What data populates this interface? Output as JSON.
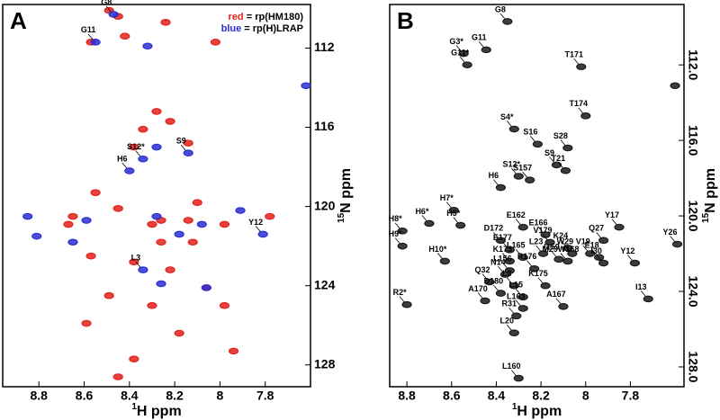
{
  "chart_data": [
    {
      "type": "scatter",
      "panel_label": "A",
      "xlabel_isotope": "1",
      "xlabel": "H ppm",
      "ylabel_isotope": "15",
      "ylabel": "N ppm",
      "xlim": [
        8.96,
        7.6
      ],
      "ylim": [
        129.1,
        109.8
      ],
      "xticks": [
        8.8,
        8.6,
        8.4,
        8.2,
        8.0,
        7.8
      ],
      "yticks": [
        112,
        116,
        120,
        124,
        128
      ],
      "legend_sep": " = ",
      "series": [
        {
          "name": "rp(HM180)",
          "legend_key": "red",
          "color": "#e3221c",
          "x": [
            8.49,
            8.45,
            8.42,
            8.24,
            8.57,
            8.02,
            8.28,
            8.22,
            8.34,
            8.14,
            8.38,
            8.55,
            8.45,
            8.65,
            8.67,
            8.3,
            8.14,
            7.98,
            7.78,
            8.26,
            8.12,
            8.57,
            8.38,
            8.22,
            8.06,
            8.49,
            8.3,
            7.98,
            8.59,
            8.18,
            8.38,
            7.94,
            8.45,
            8.26,
            8.1
          ],
          "y": [
            110.1,
            110.4,
            111.4,
            110.7,
            111.7,
            111.7,
            115.2,
            115.7,
            116.1,
            116.8,
            117.0,
            119.3,
            120.1,
            120.5,
            120.9,
            120.9,
            120.7,
            120.9,
            120.5,
            121.8,
            121.8,
            122.5,
            122.8,
            123.2,
            124.1,
            124.5,
            125.0,
            125.0,
            125.9,
            126.4,
            127.7,
            127.3,
            128.6,
            120.7,
            119.8
          ]
        },
        {
          "name": "rp(H)LRAP",
          "legend_key": "blue",
          "color": "#2b2fd0",
          "x": [
            8.47,
            8.55,
            8.32,
            8.28,
            8.14,
            8.34,
            8.4,
            8.85,
            8.81,
            8.59,
            8.28,
            8.08,
            7.91,
            7.81,
            8.34,
            8.26,
            8.06,
            8.65,
            7.62,
            8.18
          ],
          "y": [
            110.3,
            111.7,
            111.9,
            117.0,
            117.3,
            117.6,
            118.2,
            120.5,
            121.5,
            120.7,
            120.5,
            120.9,
            120.2,
            121.4,
            123.2,
            123.9,
            124.1,
            121.8,
            113.9,
            121.4
          ],
          "labels": [
            "G8",
            "G11",
            null,
            null,
            "S9",
            "S12*",
            "H6",
            null,
            null,
            null,
            null,
            null,
            null,
            "Y12",
            "L3",
            null,
            null,
            null,
            null,
            null
          ]
        }
      ]
    },
    {
      "type": "scatter",
      "panel_label": "B",
      "xlabel_isotope": "1",
      "xlabel": "H ppm",
      "ylabel_isotope": "15",
      "ylabel": "N ppm",
      "xlim": [
        8.877,
        7.56
      ],
      "ylim": [
        129.05,
        108.8
      ],
      "xticks": [
        8.8,
        8.6,
        8.4,
        8.2,
        8.0,
        7.8
      ],
      "yticks": [
        {
          "value": 112,
          "label": "112.0"
        },
        {
          "value": 116,
          "label": "116.0"
        },
        {
          "value": 120,
          "label": "120.0"
        },
        {
          "value": 124,
          "label": "124.0"
        },
        {
          "value": 128,
          "label": "128.0"
        }
      ],
      "series": [
        {
          "color": "#1a1a1a",
          "x": [
            8.35,
            8.445,
            8.546,
            8.53,
            8.02,
            7.6,
            8.0,
            8.32,
            8.08,
            8.215,
            8.13,
            8.3,
            8.09,
            8.25,
            8.38,
            8.59,
            8.7,
            8.56,
            8.82,
            8.82,
            8.63,
            8.28,
            8.18,
            7.92,
            7.85,
            7.78,
            7.59,
            8.16,
            8.08,
            8.06,
            7.98,
            8.38,
            8.19,
            8.12,
            8.08,
            7.94,
            7.92,
            8.34,
            8.28,
            8.34,
            8.34,
            8.23,
            8.36,
            8.18,
            8.43,
            8.32,
            8.38,
            8.28,
            8.8,
            8.45,
            8.28,
            8.1,
            7.72,
            8.31,
            8.32,
            8.3
          ],
          "y": [
            109.7,
            111.2,
            111.4,
            112.0,
            112.1,
            113.1,
            114.7,
            115.4,
            116.4,
            116.2,
            117.3,
            117.9,
            117.6,
            118.1,
            118.5,
            119.7,
            120.4,
            120.5,
            120.8,
            121.6,
            122.4,
            120.6,
            121.0,
            121.3,
            120.6,
            122.5,
            121.5,
            121.4,
            121.7,
            122.0,
            122.0,
            121.3,
            122.0,
            122.3,
            122.4,
            122.2,
            122.5,
            121.8,
            122.2,
            122.4,
            122.9,
            122.8,
            123.1,
            123.7,
            123.5,
            123.7,
            124.1,
            124.3,
            124.7,
            124.5,
            124.9,
            124.8,
            124.4,
            125.3,
            126.2,
            128.6
          ],
          "labels": [
            "G8",
            "G11",
            "G3*",
            "G11*",
            "T171",
            null,
            "T174",
            "S4*",
            "S28",
            "S16",
            "S9",
            "S12*",
            "T21",
            "S157",
            "H6",
            "H7*",
            "H6*",
            "H5*",
            "H8*",
            "H9*",
            "H10*",
            "E162",
            "E166",
            "Q27",
            "Y17",
            "Y12",
            "Y26",
            "V179",
            "K24",
            "W29",
            "V19",
            "D172",
            "L23",
            "I159",
            "M29W168",
            "E18",
            "I30",
            "E177",
            "L165",
            "K173",
            "L156",
            "R176",
            "N14",
            "K175",
            "Q32",
            "L3",
            "D180",
            "L15",
            "R2*",
            "A170",
            "L163",
            "A167",
            "I13",
            "R31",
            "L20",
            "L160"
          ]
        }
      ]
    }
  ]
}
